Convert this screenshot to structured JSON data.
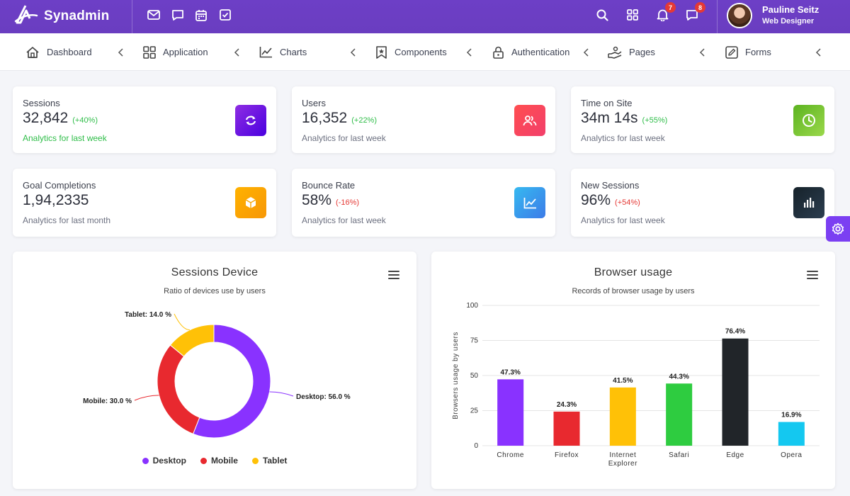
{
  "app": {
    "brand": "Synadmin"
  },
  "topbar": {
    "icons": [
      "mail-icon",
      "chat-icon",
      "calendar-icon",
      "checkbox-icon"
    ],
    "notifications_count": "7",
    "messages_count": "8",
    "user": {
      "name": "Pauline Seitz",
      "role": "Web Designer"
    }
  },
  "menu": {
    "items": [
      {
        "label": "Dashboard",
        "icon": "home-icon"
      },
      {
        "label": "Application",
        "icon": "grid-icon"
      },
      {
        "label": "Charts",
        "icon": "line-chart-icon"
      },
      {
        "label": "Components",
        "icon": "bookmark-icon"
      },
      {
        "label": "Authentication",
        "icon": "lock-icon"
      },
      {
        "label": "Pages",
        "icon": "hand-icon"
      },
      {
        "label": "Forms",
        "icon": "edit-icon"
      }
    ]
  },
  "stats": [
    {
      "label": "Sessions",
      "value": "32,842",
      "delta": "(+40%)",
      "sub": "Analytics for last week",
      "icon": "refresh-icon",
      "color": "#7a22f0"
    },
    {
      "label": "Users",
      "value": "16,352",
      "delta": "(+22%)",
      "sub": "Analytics for last week",
      "icon": "users-icon",
      "color": "#f5454b"
    },
    {
      "label": "Time on Site",
      "value": "34m 14s",
      "delta": "(+55%)",
      "sub": "Analytics for last week",
      "icon": "clock-icon",
      "color": "#72c02c"
    },
    {
      "label": "Goal Completions",
      "value": "1,94,2335",
      "delta": "",
      "sub": "Analytics for last month",
      "icon": "cube-icon",
      "color": "#f7b500"
    },
    {
      "label": "Bounce Rate",
      "value": "58%",
      "delta": "(-16%)",
      "sub": "Analytics for last week",
      "icon": "chart-up-icon",
      "color": "#2f9df0"
    },
    {
      "label": "New Sessions",
      "value": "96%",
      "delta": "(+54%)",
      "sub": "Analytics for last week",
      "icon": "bar-chart-icon",
      "color": "#1f2b35"
    }
  ],
  "chart_data": [
    {
      "type": "pie",
      "title": "Sessions Device",
      "subtitle": "Ratio of devices use by users",
      "categories": [
        "Desktop",
        "Mobile",
        "Tablet"
      ],
      "values": [
        56.0,
        30.0,
        14.0
      ],
      "data_labels": [
        "Desktop: 56.0 %",
        "Mobile: 30.0 %",
        "Tablet: 14.0 %"
      ],
      "colors": [
        "#8932ff",
        "#e8292f",
        "#ffc107"
      ],
      "legend": "bottom"
    },
    {
      "type": "bar",
      "title": "Browser usage",
      "subtitle": "Records of browser usage by users",
      "ylabel": "Browsers usage by users",
      "xlabel": "",
      "categories": [
        "Chrome",
        "Firefox",
        "Internet Explorer",
        "Safari",
        "Edge",
        "Opera"
      ],
      "values": [
        47.3,
        24.3,
        41.5,
        44.3,
        76.4,
        16.9
      ],
      "data_labels": [
        "47.3%",
        "24.3%",
        "41.5%",
        "44.3%",
        "76.4%",
        "16.9%"
      ],
      "colors": [
        "#8932ff",
        "#e8292f",
        "#ffc107",
        "#2ecc40",
        "#212529",
        "#14c8f0"
      ],
      "ylim": [
        0,
        100
      ],
      "yticks": [
        "0",
        "25",
        "50",
        "75",
        "100"
      ],
      "grid": true
    }
  ]
}
